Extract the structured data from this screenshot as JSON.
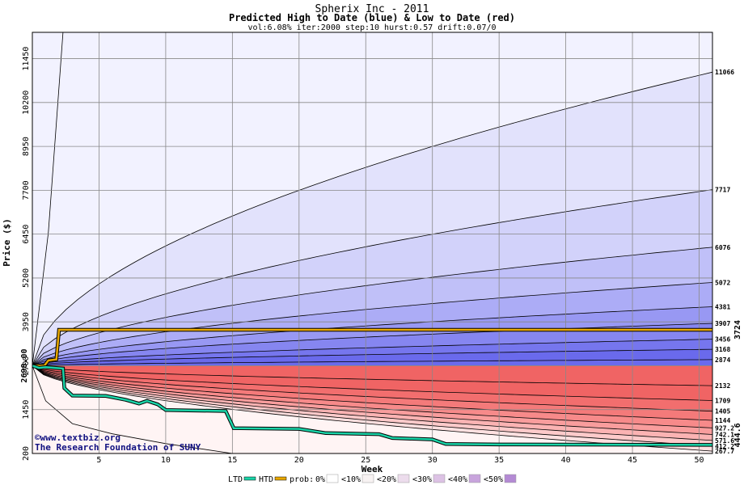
{
  "chart_data": {
    "type": "area",
    "title": "Spherix Inc - 2011",
    "subtitle": "Predicted High to Date (blue) &  Low to Date (red)",
    "params": "vol:6.08% iter:2000 step:10 hurst:0.57 drift:0.07/0",
    "xlabel": "Week",
    "ylabel": "Price ($)",
    "xlim": [
      0,
      51
    ],
    "ylim": [
      200,
      12200
    ],
    "x_ticks": [
      5,
      10,
      15,
      20,
      25,
      30,
      35,
      40,
      45,
      50
    ],
    "x_tick_labels": [
      "5",
      "10",
      "15",
      "20",
      "25",
      "30",
      "35",
      "40",
      "45",
      "50"
    ],
    "y_ticks": [
      200,
      1450,
      2700,
      3950,
      5200,
      6450,
      7700,
      8950,
      10200,
      11450
    ],
    "y_tick_labels": [
      "200",
      "1450",
      "2700",
      "3950",
      "5200",
      "6450",
      "7700",
      "8950",
      "10200",
      "11450"
    ],
    "start_price": 2698,
    "start_price_label": "2698.00",
    "high_bands": [
      {
        "end": 11066,
        "label": "11066"
      },
      {
        "end": 7717,
        "label": "7717"
      },
      {
        "end": 6076,
        "label": "6076"
      },
      {
        "end": 5072,
        "label": "5072"
      },
      {
        "end": 4381,
        "label": "4381"
      },
      {
        "end": 3907,
        "label": "3907"
      },
      {
        "end": 3456,
        "label": "3456"
      },
      {
        "end": 3168,
        "label": "3168"
      },
      {
        "end": 2874,
        "label": "2874"
      }
    ],
    "low_bands": [
      {
        "end": 2132,
        "label": "2132"
      },
      {
        "end": 1709,
        "label": "1709"
      },
      {
        "end": 1405,
        "label": "1405"
      },
      {
        "end": 1144,
        "label": "1144"
      },
      {
        "end": 927.2,
        "label": "927.2"
      },
      {
        "end": 742.1,
        "label": "742.1"
      },
      {
        "end": 571.6,
        "label": "571.6"
      },
      {
        "end": 412.2,
        "label": "412.2"
      },
      {
        "end": 267.7,
        "label": "267.7"
      }
    ],
    "htd_level": 3724,
    "htd_label": "3724",
    "ltd_level": 444.6,
    "ltd_label": "444.6",
    "htd_path": [
      [
        0,
        2698
      ],
      [
        0.9,
        2698
      ],
      [
        1.2,
        2850
      ],
      [
        1.8,
        2880
      ],
      [
        2.0,
        3724
      ],
      [
        51,
        3724
      ]
    ],
    "ltd_path": [
      [
        0,
        2698
      ],
      [
        0.5,
        2640
      ],
      [
        1.0,
        2660
      ],
      [
        2.3,
        2620
      ],
      [
        2.4,
        2060
      ],
      [
        3.0,
        1850
      ],
      [
        5.5,
        1840
      ],
      [
        7.0,
        1730
      ],
      [
        8.0,
        1620
      ],
      [
        8.6,
        1700
      ],
      [
        9.4,
        1600
      ],
      [
        10.0,
        1440
      ],
      [
        14.5,
        1410
      ],
      [
        15.1,
        920
      ],
      [
        20.0,
        900
      ],
      [
        22.0,
        780
      ],
      [
        26.0,
        750
      ],
      [
        27.0,
        640
      ],
      [
        30.0,
        600
      ],
      [
        31.0,
        470
      ],
      [
        35.0,
        455
      ],
      [
        51.0,
        444.6
      ]
    ],
    "legend": {
      "ltd": "LTD",
      "htd": "HTD",
      "prob": "prob:",
      "items": [
        "0%",
        "<10%",
        "<20%",
        "<30%",
        "<40%",
        "<50%"
      ]
    },
    "credit": [
      "©www.textbiz.org",
      "The Research Foundation of SUNY"
    ]
  },
  "colors": {
    "htd": "#e8a800",
    "ltd": "#1ad4a8",
    "blue_fills": [
      "#f2f2ff",
      "#e2e2fc",
      "#d2d2fa",
      "#c0c0f8",
      "#acacf6",
      "#9898f3",
      "#8686f0",
      "#7676ee",
      "#6a6aec"
    ],
    "red_fills": [
      "#fff4f4",
      "#fee0e0",
      "#fdcaca",
      "#fbb3b3",
      "#f99d9d",
      "#f78a8a",
      "#f47a7a",
      "#f26e6e",
      "#f06464"
    ],
    "legend_swatches": [
      "#ffffff",
      "#f7f2f2",
      "#ecdcec",
      "#dcc2e4",
      "#c8a4dc",
      "#b48ad4"
    ]
  }
}
